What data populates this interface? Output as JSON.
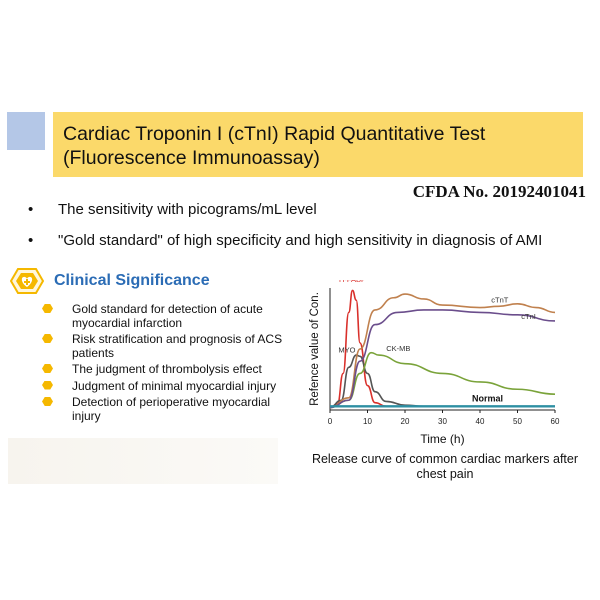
{
  "header": {
    "title_line1": "Cardiac Troponin I (cTnI) Rapid Quantitative Test",
    "title_line2": "(Fluorescence Immunoassay)",
    "cfda": "CFDA No. 20192401041",
    "banner_color": "#fbd96a",
    "accent_color": "#b4c7e7"
  },
  "bullets": [
    "The sensitivity with picograms/mL level",
    "\"Gold standard\" of high specificity and high sensitivity in diagnosis of AMI"
  ],
  "bullet_symbol": "•",
  "section": {
    "title": "Clinical Significance",
    "icon": "heart-plus-hexagon-icon",
    "title_color": "#2b6cb5"
  },
  "significance": [
    "Gold standard for detection of acute myocardial infarction",
    "Risk stratification and prognosis of ACS patients",
    "The judgment of thrombolysis effect",
    "Judgment of minimal myocardial injury",
    "Detection of perioperative myocardial injury"
  ],
  "chart_data": {
    "type": "line",
    "xlabel": "Time (h)",
    "ylabel": "Refence value of Con.",
    "xlim": [
      0,
      60
    ],
    "xticks": [
      0,
      10,
      20,
      30,
      40,
      50,
      60
    ],
    "ylim": [
      0,
      1
    ],
    "grid": false,
    "caption": "Release curve of common cardiac markers after chest pain",
    "normal_label": "Normal",
    "series": [
      {
        "name": "H-FABP",
        "color": "#d9302b",
        "points": [
          [
            0,
            0.02
          ],
          [
            2,
            0.05
          ],
          [
            3.5,
            0.3
          ],
          [
            5,
            0.8
          ],
          [
            6,
            0.98
          ],
          [
            7,
            0.9
          ],
          [
            8,
            0.55
          ],
          [
            10,
            0.2
          ],
          [
            12,
            0.06
          ],
          [
            15,
            0.03
          ],
          [
            20,
            0.03
          ]
        ]
      },
      {
        "name": "MYO",
        "color": "#555555",
        "points": [
          [
            0,
            0.02
          ],
          [
            3,
            0.08
          ],
          [
            5,
            0.35
          ],
          [
            7,
            0.45
          ],
          [
            8,
            0.44
          ],
          [
            10,
            0.3
          ],
          [
            12,
            0.15
          ],
          [
            15,
            0.07
          ],
          [
            20,
            0.04
          ],
          [
            25,
            0.03
          ]
        ]
      },
      {
        "name": "CK-MB",
        "color": "#7aa33a",
        "points": [
          [
            0,
            0.02
          ],
          [
            5,
            0.08
          ],
          [
            8,
            0.3
          ],
          [
            11,
            0.47
          ],
          [
            13,
            0.45
          ],
          [
            20,
            0.38
          ],
          [
            30,
            0.3
          ],
          [
            40,
            0.23
          ],
          [
            50,
            0.17
          ],
          [
            60,
            0.13
          ]
        ]
      },
      {
        "name": "cTnT",
        "color": "#c0814e",
        "points": [
          [
            0,
            0.02
          ],
          [
            5,
            0.1
          ],
          [
            8,
            0.5
          ],
          [
            12,
            0.82
          ],
          [
            17,
            0.92
          ],
          [
            20,
            0.95
          ],
          [
            25,
            0.91
          ],
          [
            30,
            0.86
          ],
          [
            40,
            0.84
          ],
          [
            45,
            0.85
          ],
          [
            50,
            0.87
          ],
          [
            55,
            0.84
          ],
          [
            60,
            0.8
          ]
        ]
      },
      {
        "name": "cTnI",
        "color": "#6b4e8c",
        "points": [
          [
            0,
            0.02
          ],
          [
            5,
            0.08
          ],
          [
            8,
            0.4
          ],
          [
            12,
            0.7
          ],
          [
            18,
            0.8
          ],
          [
            25,
            0.82
          ],
          [
            30,
            0.82
          ],
          [
            40,
            0.8
          ],
          [
            50,
            0.78
          ],
          [
            60,
            0.73
          ]
        ]
      },
      {
        "name": "Normal",
        "color": "#2e8fa3",
        "points": [
          [
            0,
            0.03
          ],
          [
            60,
            0.03
          ]
        ]
      }
    ]
  }
}
